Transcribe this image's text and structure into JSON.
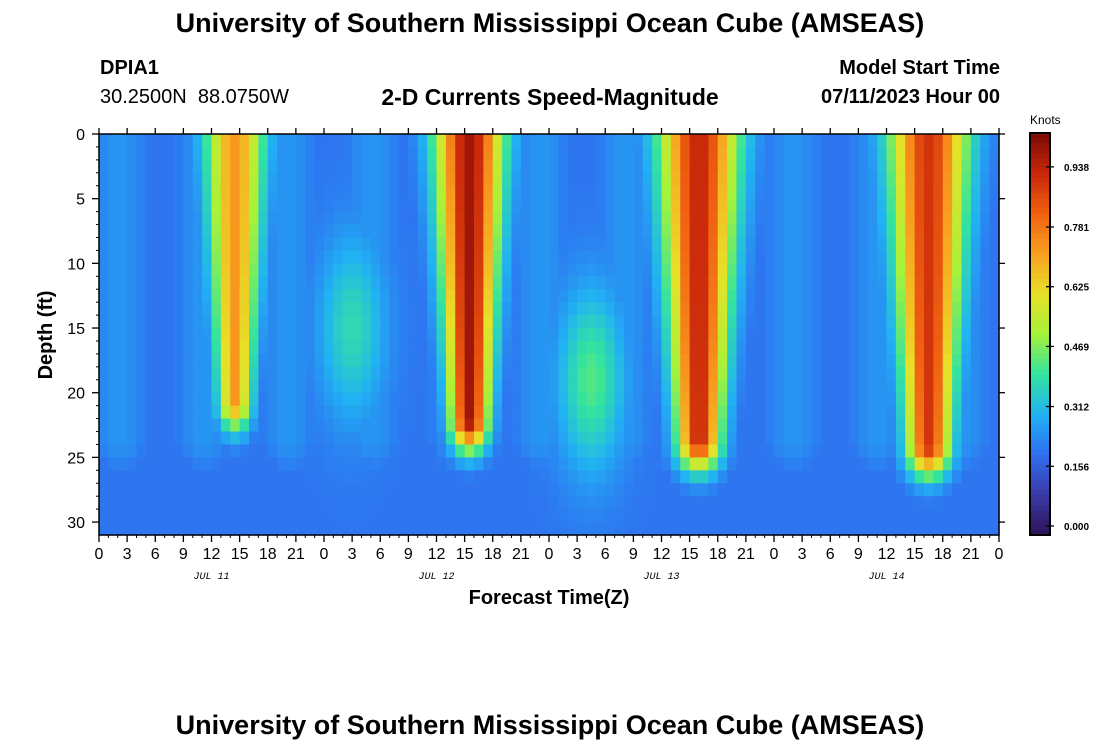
{
  "header": {
    "title": "University of Southern Mississippi Ocean Cube (AMSEAS)",
    "station_id": "DPIA1",
    "coordinates": "30.2500N  88.0750W",
    "chart_title": "2-D Currents Speed-Magnitude",
    "model_start_label": "Model Start Time",
    "model_start_value": "07/11/2023 Hour 00"
  },
  "footer": {
    "title": "University of Southern Mississippi Ocean Cube (AMSEAS)"
  },
  "chart_data": {
    "type": "heatmap",
    "title": "2-D Currents Speed-Magnitude",
    "xlabel": "Forecast Time(Z)",
    "ylabel": "Depth (ft)",
    "x_range_hours": [
      0,
      96
    ],
    "y_range_ft": [
      0,
      31
    ],
    "x_tick_labels": [
      "0",
      "3",
      "6",
      "9",
      "12",
      "15",
      "18",
      "21",
      "0",
      "3",
      "6",
      "9",
      "12",
      "15",
      "18",
      "21",
      "0",
      "3",
      "6",
      "9",
      "12",
      "15",
      "18",
      "21",
      "0",
      "3",
      "6",
      "9",
      "12",
      "15",
      "18",
      "21",
      "0"
    ],
    "y_ticks": [
      0,
      5,
      10,
      15,
      20,
      25,
      30
    ],
    "y_tick_labels": [
      "0",
      "5",
      "10",
      "15",
      "20",
      "25",
      "30"
    ],
    "date_labels": [
      {
        "text": "JUL 11",
        "hour": 12
      },
      {
        "text": "JUL 12",
        "hour": 36
      },
      {
        "text": "JUL 13",
        "hour": 60
      },
      {
        "text": "JUL 14",
        "hour": 84
      }
    ],
    "colorbar": {
      "unit": "Knots",
      "min": 0.0,
      "max": 1.05,
      "tick_values": [
        0.0,
        0.156,
        0.312,
        0.469,
        0.625,
        0.781,
        0.938
      ],
      "tick_labels": [
        "0.000",
        "0.156",
        "0.312",
        "0.469",
        "0.625",
        "0.781",
        "0.938"
      ],
      "colors": [
        "#2b1358",
        "#3a3aa6",
        "#2f6ff0",
        "#21b2f3",
        "#33e3a0",
        "#a6f23a",
        "#e8e028",
        "#f9a020",
        "#f06010",
        "#c8260a",
        "#7a0a06"
      ]
    },
    "peaks": [
      {
        "hour": 14.5,
        "width": 3.2,
        "depth": 20.5,
        "speed": 0.75
      },
      {
        "hour": 39.5,
        "width": 3.6,
        "depth": 22.0,
        "speed": 1.0
      },
      {
        "hour": 64.0,
        "width": 4.2,
        "depth": 23.5,
        "speed": 0.95
      },
      {
        "hour": 88.5,
        "width": 4.2,
        "depth": 24.0,
        "speed": 0.92
      }
    ],
    "secondary_peaks": [
      {
        "hour": 27.0,
        "depth": 15.0,
        "speed": 0.4
      },
      {
        "hour": 52.5,
        "depth": 19.0,
        "speed": 0.45
      }
    ]
  }
}
